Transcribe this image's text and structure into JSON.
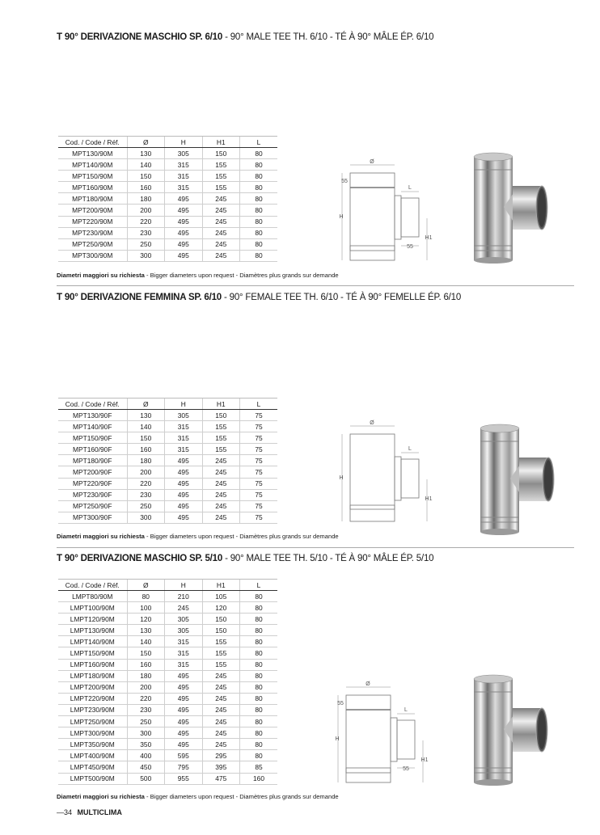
{
  "sections": [
    {
      "title_bold": "T 90° DERIVAZIONE MASCHIO SP. 6/10",
      "title_rest": " - 90° MALE TEE TH. 6/10 - TÉ À 90° MÂLE ÉP. 6/10",
      "columns": [
        "Cod. / Code / Réf.",
        "Ø",
        "H",
        "H1",
        "L"
      ],
      "rows": [
        [
          "MPT130/90M",
          "130",
          "305",
          "150",
          "80"
        ],
        [
          "MPT140/90M",
          "140",
          "315",
          "155",
          "80"
        ],
        [
          "MPT150/90M",
          "150",
          "315",
          "155",
          "80"
        ],
        [
          "MPT160/90M",
          "160",
          "315",
          "155",
          "80"
        ],
        [
          "MPT180/90M",
          "180",
          "495",
          "245",
          "80"
        ],
        [
          "MPT200/90M",
          "200",
          "495",
          "245",
          "80"
        ],
        [
          "MPT220/90M",
          "220",
          "495",
          "245",
          "80"
        ],
        [
          "MPT230/90M",
          "230",
          "495",
          "245",
          "80"
        ],
        [
          "MPT250/90M",
          "250",
          "495",
          "245",
          "80"
        ],
        [
          "MPT300/90M",
          "300",
          "495",
          "245",
          "80"
        ]
      ],
      "note_bold": "Diametri maggiori su richiesta",
      "note_rest": " - Bigger diameters upon request - Diamètres plus grands sur demande",
      "diagram_labels": {
        "d": "Ø",
        "top": "55",
        "l": "L",
        "h": "H",
        "h1": "H1",
        "bottom": "55"
      },
      "variant": "male"
    },
    {
      "title_bold": "T 90° DERIVAZIONE FEMMINA SP. 6/10",
      "title_rest": " - 90° FEMALE TEE TH. 6/10 - TÉ À 90° FEMELLE ÉP. 6/10",
      "columns": [
        "Cod. / Code / Réf.",
        "Ø",
        "H",
        "H1",
        "L"
      ],
      "rows": [
        [
          "MPT130/90F",
          "130",
          "305",
          "150",
          "75"
        ],
        [
          "MPT140/90F",
          "140",
          "315",
          "155",
          "75"
        ],
        [
          "MPT150/90F",
          "150",
          "315",
          "155",
          "75"
        ],
        [
          "MPT160/90F",
          "160",
          "315",
          "155",
          "75"
        ],
        [
          "MPT180/90F",
          "180",
          "495",
          "245",
          "75"
        ],
        [
          "MPT200/90F",
          "200",
          "495",
          "245",
          "75"
        ],
        [
          "MPT220/90F",
          "220",
          "495",
          "245",
          "75"
        ],
        [
          "MPT230/90F",
          "230",
          "495",
          "245",
          "75"
        ],
        [
          "MPT250/90F",
          "250",
          "495",
          "245",
          "75"
        ],
        [
          "MPT300/90F",
          "300",
          "495",
          "245",
          "75"
        ]
      ],
      "note_bold": "Diametri maggiori su richiesta",
      "note_rest": " - Bigger diameters upon request - Diamètres plus grands sur demande",
      "diagram_labels": {
        "d": "Ø",
        "l": "L",
        "h": "H",
        "h1": "H1"
      },
      "variant": "female"
    },
    {
      "title_bold": "T 90° DERIVAZIONE MASCHIO SP. 5/10",
      "title_rest": " - 90° MALE TEE TH. 5/10 - TÉ À 90° MÂLE ÉP. 5/10",
      "columns": [
        "Cod. / Code / Réf.",
        "Ø",
        "H",
        "H1",
        "L"
      ],
      "rows": [
        [
          "LMPT80/90M",
          "80",
          "210",
          "105",
          "80"
        ],
        [
          "LMPT100/90M",
          "100",
          "245",
          "120",
          "80"
        ],
        [
          "LMPT120/90M",
          "120",
          "305",
          "150",
          "80"
        ],
        [
          "LMPT130/90M",
          "130",
          "305",
          "150",
          "80"
        ],
        [
          "LMPT140/90M",
          "140",
          "315",
          "155",
          "80"
        ],
        [
          "LMPT150/90M",
          "150",
          "315",
          "155",
          "80"
        ],
        [
          "LMPT160/90M",
          "160",
          "315",
          "155",
          "80"
        ],
        [
          "LMPT180/90M",
          "180",
          "495",
          "245",
          "80"
        ],
        [
          "LMPT200/90M",
          "200",
          "495",
          "245",
          "80"
        ],
        [
          "LMPT220/90M",
          "220",
          "495",
          "245",
          "80"
        ],
        [
          "LMPT230/90M",
          "230",
          "495",
          "245",
          "80"
        ],
        [
          "LMPT250/90M",
          "250",
          "495",
          "245",
          "80"
        ],
        [
          "LMPT300/90M",
          "300",
          "495",
          "245",
          "80"
        ],
        [
          "LMPT350/90M",
          "350",
          "495",
          "245",
          "80"
        ],
        [
          "LMPT400/90M",
          "400",
          "595",
          "295",
          "80"
        ],
        [
          "LMPT450/90M",
          "450",
          "795",
          "395",
          "85"
        ],
        [
          "LMPT500/90M",
          "500",
          "955",
          "475",
          "160"
        ]
      ],
      "note_bold": "Diametri maggiori su richiesta",
      "note_rest": " - Bigger diameters upon request - Diamètres plus grands sur demande",
      "diagram_labels": {
        "d": "Ø",
        "top": "55",
        "l": "L",
        "h": "H",
        "h1": "H1",
        "bottom": "55"
      },
      "variant": "male"
    }
  ],
  "footer": {
    "page_number": "—34",
    "brand": "MULTICLIMA"
  }
}
